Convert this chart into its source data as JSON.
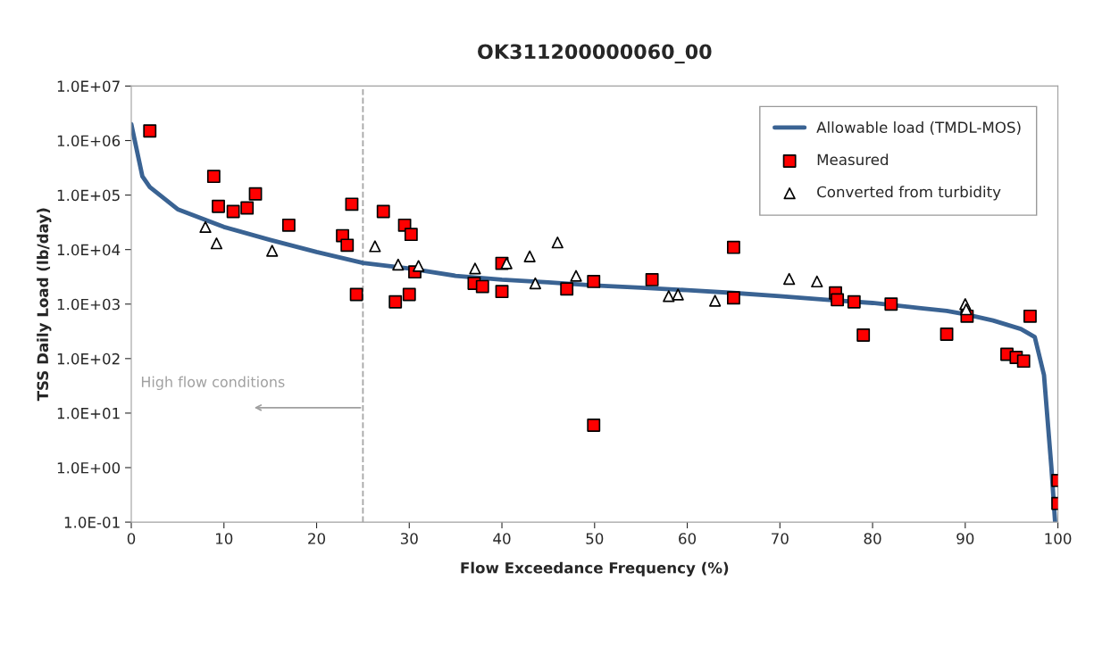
{
  "chart_data": {
    "type": "scatter",
    "title": "OK311200000060_00",
    "xlabel": "Flow Exceedance Frequency (%)",
    "ylabel": "TSS Daily Load (lb/day)",
    "log": "y",
    "xlim": [
      0,
      100
    ],
    "xticks": [
      0,
      10,
      20,
      30,
      40,
      50,
      60,
      70,
      80,
      90,
      100
    ],
    "ylim": [
      0.1,
      10000000
    ],
    "yticks": [
      {
        "value": 0.1,
        "label": "1.0E-01"
      },
      {
        "value": 1,
        "label": "1.0E+00"
      },
      {
        "value": 10,
        "label": "1.0E+01"
      },
      {
        "value": 100,
        "label": "1.0E+02"
      },
      {
        "value": 1000,
        "label": "1.0E+03"
      },
      {
        "value": 10000,
        "label": "1.0E+04"
      },
      {
        "value": 100000,
        "label": "1.0E+05"
      },
      {
        "value": 1000000,
        "label": "1.0E+06"
      },
      {
        "value": 10000000,
        "label": "1.0E+07"
      }
    ],
    "grid": false,
    "legend": "top right",
    "ref_lines": [
      {
        "axis": "x",
        "value": 25,
        "label": "High flow conditions",
        "color": "#a6a6a6",
        "line_style": "dashed"
      }
    ],
    "series": [
      {
        "name": "Allowable load (TMDL-MOS)",
        "type": "line",
        "color": "#3a6393",
        "marker": "none",
        "line_style": "solid",
        "x": [
          0,
          0.5,
          1.2,
          2,
          5,
          10,
          15,
          20,
          25,
          30,
          35,
          40,
          45,
          50,
          55,
          60,
          65,
          70,
          75,
          80,
          85,
          88,
          90,
          93,
          96,
          97.5,
          98.5,
          99.3,
          99.7
        ],
        "values": [
          2000000,
          800000,
          220000,
          140000,
          55000,
          26000,
          15000,
          9000,
          5700,
          4500,
          3300,
          2800,
          2500,
          2200,
          2000,
          1800,
          1600,
          1400,
          1200,
          1050,
          850,
          750,
          650,
          500,
          350,
          250,
          50,
          1,
          0.1
        ]
      },
      {
        "name": "Measured",
        "color": "#ff0000",
        "marker": "square",
        "x": [
          2,
          8.9,
          9.4,
          11,
          12.5,
          13.4,
          17,
          22.8,
          23.3,
          23.8,
          24.3,
          27.2,
          28.5,
          29.5,
          30,
          30.2,
          30.6,
          37,
          37.9,
          40,
          40,
          47,
          49.9,
          49.9,
          56.2,
          65,
          65,
          76,
          76.2,
          78,
          79,
          82,
          88,
          90.2,
          94.5,
          95.5,
          96.3,
          97,
          100,
          100
        ],
        "values": [
          1500000,
          220000,
          62000,
          50000,
          58000,
          105000,
          28000,
          18000,
          12000,
          68000,
          1500,
          50000,
          1100,
          28000,
          1500,
          19000,
          3900,
          2400,
          2100,
          5600,
          1700,
          1900,
          2600,
          6,
          2800,
          11000,
          1300,
          1600,
          1200,
          1100,
          270,
          1000,
          280,
          600,
          120,
          105,
          90,
          600,
          0.58,
          0.22
        ]
      },
      {
        "name": "Converted from turbidity",
        "color": "#ffffff",
        "marker": "triangle",
        "x": [
          8,
          9.2,
          15.2,
          26.3,
          28.8,
          31,
          37.1,
          40.5,
          43,
          43.6,
          46,
          48,
          58,
          59,
          63,
          71,
          74,
          90,
          90.1
        ],
        "values": [
          26000,
          13000,
          9500,
          11500,
          5300,
          5000,
          4500,
          5600,
          7500,
          2400,
          13500,
          3300,
          1400,
          1500,
          1150,
          2900,
          2600,
          1000,
          800
        ]
      }
    ]
  }
}
